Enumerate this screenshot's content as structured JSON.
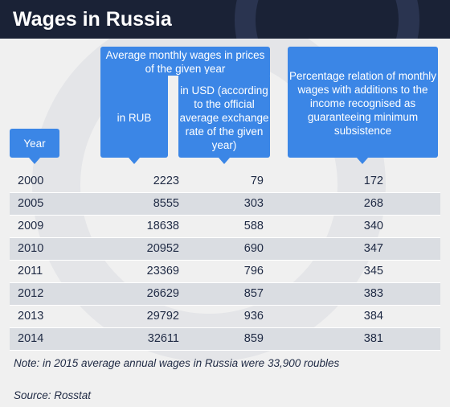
{
  "title": "Wages in Russia",
  "headers": {
    "group": "Average monthly wages in prices of the given year",
    "rub": "in RUB",
    "usd": "in USD (according to the official average exchange rate of the given year)",
    "pct": "Percentage relation of monthly wages with additions to the income recognised as guaranteeing minimum subsistence",
    "year": "Year"
  },
  "colors": {
    "accent": "#3b86e6",
    "title_bg": "#1a2236",
    "row_alt": "#dadde2"
  },
  "chart_data": {
    "type": "table",
    "columns": [
      "Year",
      "in RUB",
      "in USD",
      "Percentage relation"
    ],
    "rows": [
      {
        "year": "2000",
        "rub": "2223",
        "usd": "79",
        "pct": "172"
      },
      {
        "year": "2005",
        "rub": "8555",
        "usd": "303",
        "pct": "268"
      },
      {
        "year": "2009",
        "rub": "18638",
        "usd": "588",
        "pct": "340"
      },
      {
        "year": "2010",
        "rub": "20952",
        "usd": "690",
        "pct": "347"
      },
      {
        "year": "2011",
        "rub": "23369",
        "usd": "796",
        "pct": "345"
      },
      {
        "year": "2012",
        "rub": "26629",
        "usd": "857",
        "pct": "383"
      },
      {
        "year": "2013",
        "rub": "29792",
        "usd": "936",
        "pct": "384"
      },
      {
        "year": "2014",
        "rub": "32611",
        "usd": "859",
        "pct": "381"
      }
    ]
  },
  "note": "Note: in 2015 average annual wages in Russia were 33,900 roubles",
  "source": "Source: Rosstat"
}
